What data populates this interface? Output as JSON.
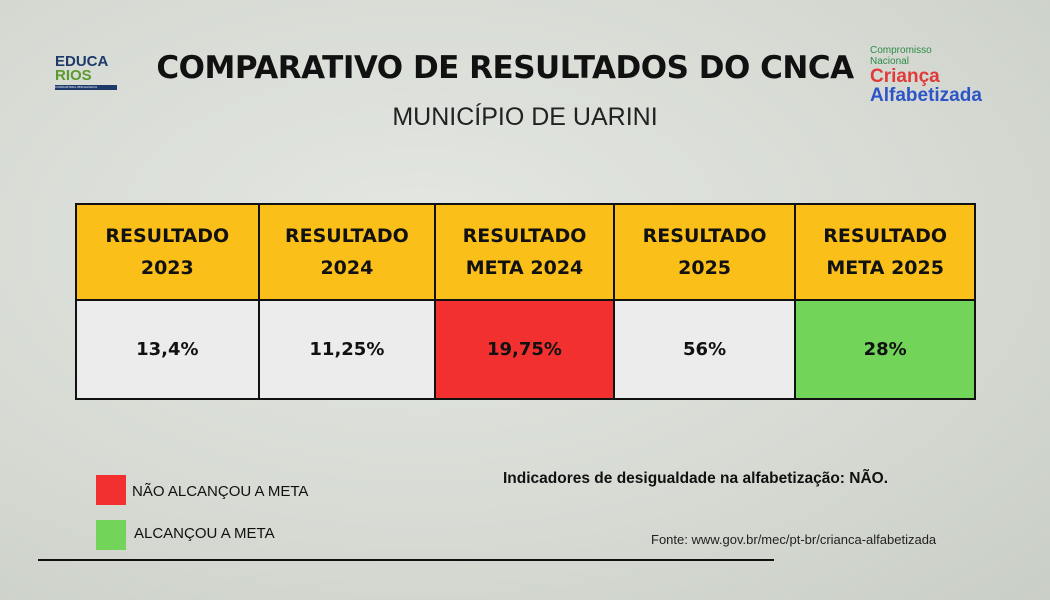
{
  "header": {
    "title": "COMPARATIVO DE RESULTADOS DO CNCA",
    "subtitle": "MUNICÍPIO DE UARINI"
  },
  "logo_left": {
    "line1": "EDUCA",
    "line2": "RIOS",
    "tagline": "CONSULTORIA PEDAGÓGICA"
  },
  "logo_right": {
    "line1": "Compromisso",
    "line2": "Nacional",
    "line3": "Criança",
    "line4": "Alfabetizada"
  },
  "table": {
    "headers": [
      [
        "RESULTADO",
        "2023"
      ],
      [
        "RESULTADO",
        "2024"
      ],
      [
        "RESULTADO",
        "META 2024"
      ],
      [
        "RESULTADO",
        "2025"
      ],
      [
        "RESULTADO",
        "META 2025"
      ]
    ],
    "values": [
      "13,4%",
      "11,25%",
      "19,75%",
      "56%",
      "28%"
    ]
  },
  "legend": [
    {
      "label": "NÃO ALCANÇOU A META",
      "color": "#f23030"
    },
    {
      "label": "ALCANÇOU A META",
      "color": "#72d55a"
    }
  ],
  "note": "Indicadores de desigualdade na alfabetização: NÃO.",
  "source": "Fonte: www.gov.br/mec/pt-br/crianca-alfabetizada"
}
